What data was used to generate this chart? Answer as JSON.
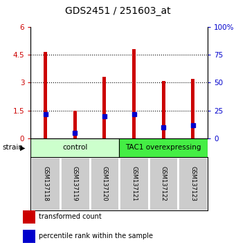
{
  "title": "GDS2451 / 251603_at",
  "samples": [
    "GSM137118",
    "GSM137119",
    "GSM137120",
    "GSM137121",
    "GSM137122",
    "GSM137123"
  ],
  "transformed_counts": [
    4.65,
    1.5,
    3.3,
    4.8,
    3.1,
    3.2
  ],
  "percentile_ranks": [
    22,
    5,
    20,
    22,
    10,
    12
  ],
  "groups": [
    {
      "label": "control",
      "indices": [
        0,
        1,
        2
      ],
      "color": "#ccffcc"
    },
    {
      "label": "TAC1 overexpressing",
      "indices": [
        3,
        4,
        5
      ],
      "color": "#44ee44"
    }
  ],
  "ylim_left": [
    0,
    6
  ],
  "ylim_right": [
    0,
    100
  ],
  "yticks_left": [
    0,
    1.5,
    3,
    4.5,
    6
  ],
  "ytick_labels_left": [
    "0",
    "1.5",
    "3",
    "4.5",
    "6"
  ],
  "yticks_right": [
    0,
    25,
    50,
    75,
    100
  ],
  "ytick_labels_right": [
    "0",
    "25",
    "50",
    "75",
    "100%"
  ],
  "bar_color": "#cc0000",
  "pct_color": "#0000cc",
  "bar_width": 0.12,
  "pct_marker_size": 22,
  "legend_items": [
    {
      "color": "#cc0000",
      "label": "transformed count"
    },
    {
      "color": "#0000cc",
      "label": "percentile rank within the sample"
    }
  ],
  "strain_label": "strain",
  "grid_yticks": [
    1.5,
    3.0,
    4.5
  ],
  "background_color": "#ffffff",
  "label_area_color": "#cccccc",
  "title_fontsize": 10
}
